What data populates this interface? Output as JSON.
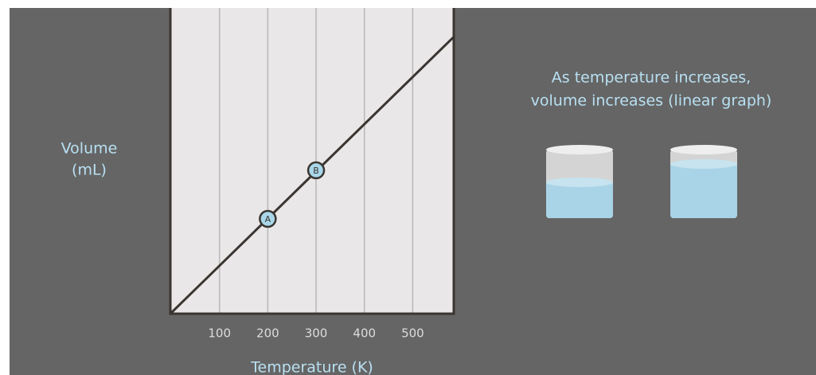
{
  "chart_data": {
    "type": "line",
    "y_label": [
      "Volume",
      "(mL)"
    ],
    "x_label": "Temperature (K)",
    "annotation": [
      "As temperature increases,",
      "volume increases (linear graph)"
    ],
    "x": [
      0,
      585
    ],
    "y": [
      0,
      91
    ],
    "points": [
      {
        "label": "A",
        "x": 200,
        "y": 31
      },
      {
        "label": "B",
        "x": 300,
        "y": 47
      }
    ],
    "xlim": [
      0,
      585
    ],
    "ylim": [
      0,
      100
    ],
    "xticks": [
      100,
      200,
      300,
      400,
      500
    ],
    "grid": true,
    "color": "#3a3530",
    "point_color": "#a9d7ea"
  }
}
